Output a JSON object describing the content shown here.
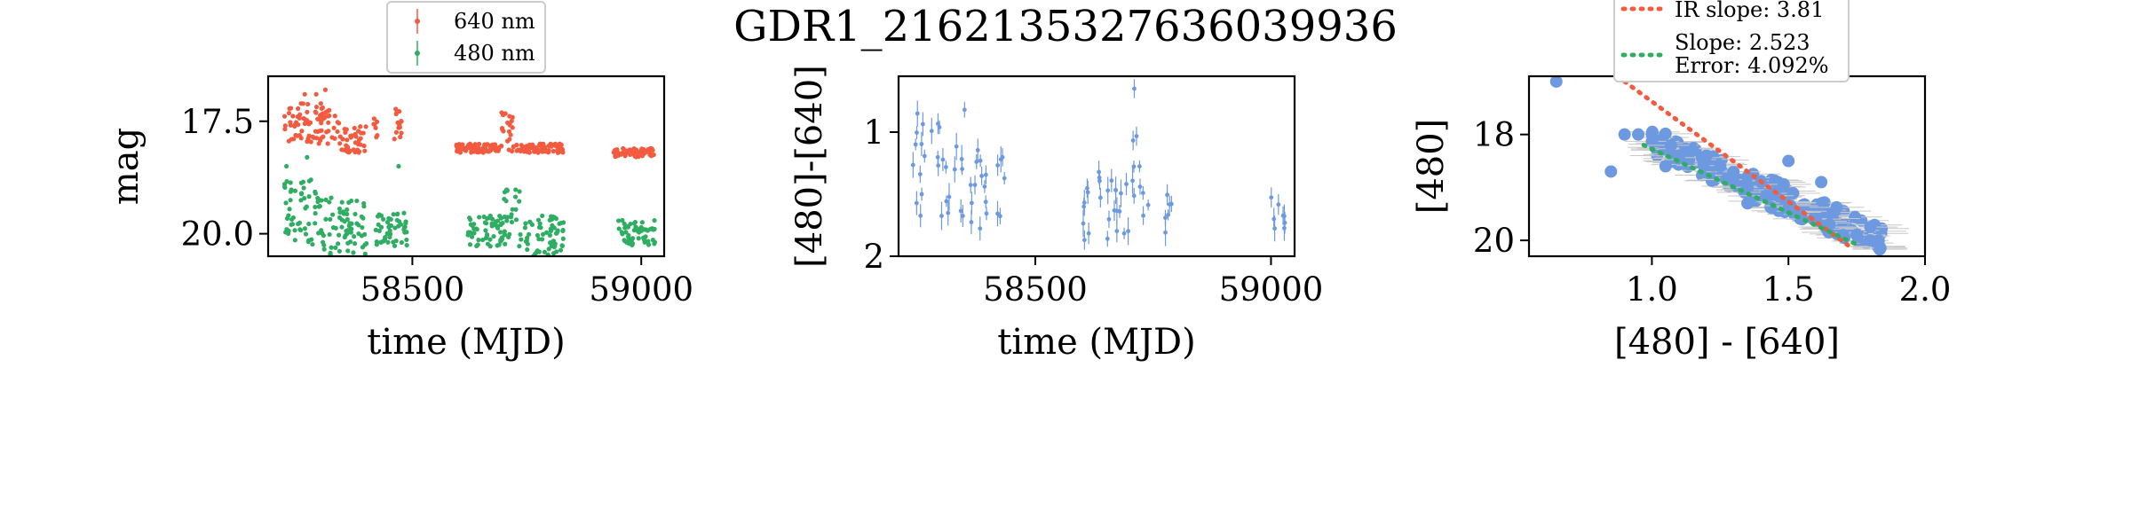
{
  "title": "GDR1_2162135327636039936",
  "colors": {
    "red": "#f25b40",
    "green": "#2fae63",
    "blue": "#6c99e0",
    "errbar": "#c8c8c8"
  },
  "chart_data": [
    {
      "type": "scatter",
      "name": "lightcurve",
      "xlabel": "time (MJD)",
      "ylabel": "mag",
      "xlim": [
        58185,
        59050
      ],
      "ylim": [
        20.5,
        16.5
      ],
      "inverted_y": true,
      "xticks": [
        {
          "v": 58500,
          "label": "58500"
        },
        {
          "v": 59000,
          "label": "59000"
        }
      ],
      "yticks": [
        {
          "v": 17.5,
          "label": "17.5"
        },
        {
          "v": 20.0,
          "label": "20.0"
        }
      ],
      "legend": {
        "placement": "top-center",
        "entries": [
          "640 nm",
          "480 nm"
        ]
      },
      "series": [
        {
          "name": "640 nm",
          "color": "red",
          "segments": [
            [
              58220,
              58340,
              17.1,
              18.0
            ],
            [
              58340,
              58400,
              17.6,
              18.2
            ],
            [
              58415,
              58425,
              17.4,
              17.9
            ],
            [
              58460,
              58480,
              17.2,
              17.9
            ],
            [
              58595,
              58690,
              18.0,
              18.2
            ],
            [
              58690,
              58720,
              17.3,
              18.2
            ],
            [
              58720,
              58830,
              18.0,
              18.2
            ],
            [
              58940,
              59030,
              18.1,
              18.3
            ]
          ],
          "outliers": [
            [
              58290,
              16.9
            ],
            [
              58310,
              16.8
            ],
            [
              58700,
              16.4
            ],
            [
              58265,
              16.9
            ]
          ]
        },
        {
          "name": "480 nm",
          "color": "green",
          "segments": [
            [
              58220,
              58300,
              18.8,
              20.3
            ],
            [
              58300,
              58400,
              19.2,
              20.5
            ],
            [
              58420,
              58490,
              19.5,
              20.3
            ],
            [
              58620,
              58700,
              19.6,
              20.3
            ],
            [
              58700,
              58740,
              19.0,
              20.3
            ],
            [
              58740,
              58830,
              19.6,
              20.5
            ],
            [
              58950,
              59030,
              19.7,
              20.3
            ]
          ],
          "outliers": [
            [
              58225,
              18.5
            ],
            [
              58270,
              18.3
            ],
            [
              58470,
              18.5
            ]
          ]
        }
      ]
    },
    {
      "type": "scatter",
      "name": "color-time",
      "xlabel": "time (MJD)",
      "ylabel": "[480]-[640]",
      "xlim": [
        58210,
        59050
      ],
      "ylim": [
        2.0,
        0.55
      ],
      "inverted_y": true,
      "xticks": [
        {
          "v": 58500,
          "label": "58500"
        },
        {
          "v": 59000,
          "label": "59000"
        }
      ],
      "yticks": [
        {
          "v": 1,
          "label": "1"
        },
        {
          "v": 2,
          "label": "2"
        }
      ],
      "series": [
        {
          "name": "",
          "color": "blue",
          "segments": [
            [
              58240,
              58300,
              0.9,
              1.7
            ],
            [
              58300,
              58400,
              1.1,
              1.8
            ],
            [
              58420,
              58440,
              1.2,
              1.7
            ],
            [
              58600,
              58700,
              1.3,
              1.9
            ],
            [
              58700,
              58740,
              1.0,
              1.8
            ],
            [
              58770,
              58790,
              1.5,
              1.9
            ],
            [
              59000,
              59030,
              1.5,
              1.8
            ]
          ],
          "outliers": [
            [
              58250,
              0.85
            ],
            [
              58350,
              0.82
            ],
            [
              58710,
              0.65
            ]
          ]
        }
      ]
    },
    {
      "type": "scatter",
      "name": "color-magnitude",
      "xlabel": "[480] - [640]",
      "ylabel": "[480]",
      "xlim": [
        0.55,
        2.0
      ],
      "ylim": [
        20.3,
        16.9
      ],
      "inverted_y": true,
      "xticks": [
        {
          "v": 1.0,
          "label": "1.0"
        },
        {
          "v": 1.5,
          "label": "1.5"
        },
        {
          "v": 2.0,
          "label": "2.0"
        }
      ],
      "yticks": [
        {
          "v": 18,
          "label": "18"
        },
        {
          "v": 20,
          "label": "20"
        }
      ],
      "legend": {
        "placement": "top-center",
        "entries": [
          {
            "label": "IR slope: 3.81",
            "color": "red"
          },
          {
            "label": "Slope: 2.523",
            "label2": "Error: 4.092%",
            "color": "green"
          }
        ]
      },
      "points": [
        [
          0.65,
          17.0
        ],
        [
          0.85,
          18.7
        ],
        [
          0.9,
          18.0
        ],
        [
          0.95,
          18.0
        ],
        [
          1.0,
          18.0
        ],
        [
          1.05,
          18.6
        ],
        [
          1.1,
          18.4
        ],
        [
          1.15,
          18.3
        ],
        [
          1.2,
          18.4
        ],
        [
          1.25,
          18.6
        ],
        [
          1.3,
          18.8
        ],
        [
          1.35,
          18.8
        ],
        [
          1.4,
          18.9
        ],
        [
          1.45,
          19.1
        ],
        [
          1.5,
          19.4
        ],
        [
          1.55,
          19.6
        ],
        [
          1.6,
          19.6
        ],
        [
          1.65,
          19.7
        ],
        [
          1.7,
          19.9
        ],
        [
          1.75,
          19.9
        ],
        [
          1.8,
          20.0
        ],
        [
          1.83,
          20.0
        ],
        [
          1.5,
          18.5
        ],
        [
          1.62,
          18.9
        ],
        [
          1.35,
          19.3
        ]
      ],
      "lines": [
        {
          "name": "IR slope",
          "color": "red",
          "x": [
            0.9,
            1.72
          ],
          "y": [
            17.0,
            20.1
          ]
        },
        {
          "name": "Slope",
          "color": "green",
          "x": [
            0.97,
            1.76
          ],
          "y": [
            18.2,
            20.1
          ]
        }
      ]
    }
  ]
}
